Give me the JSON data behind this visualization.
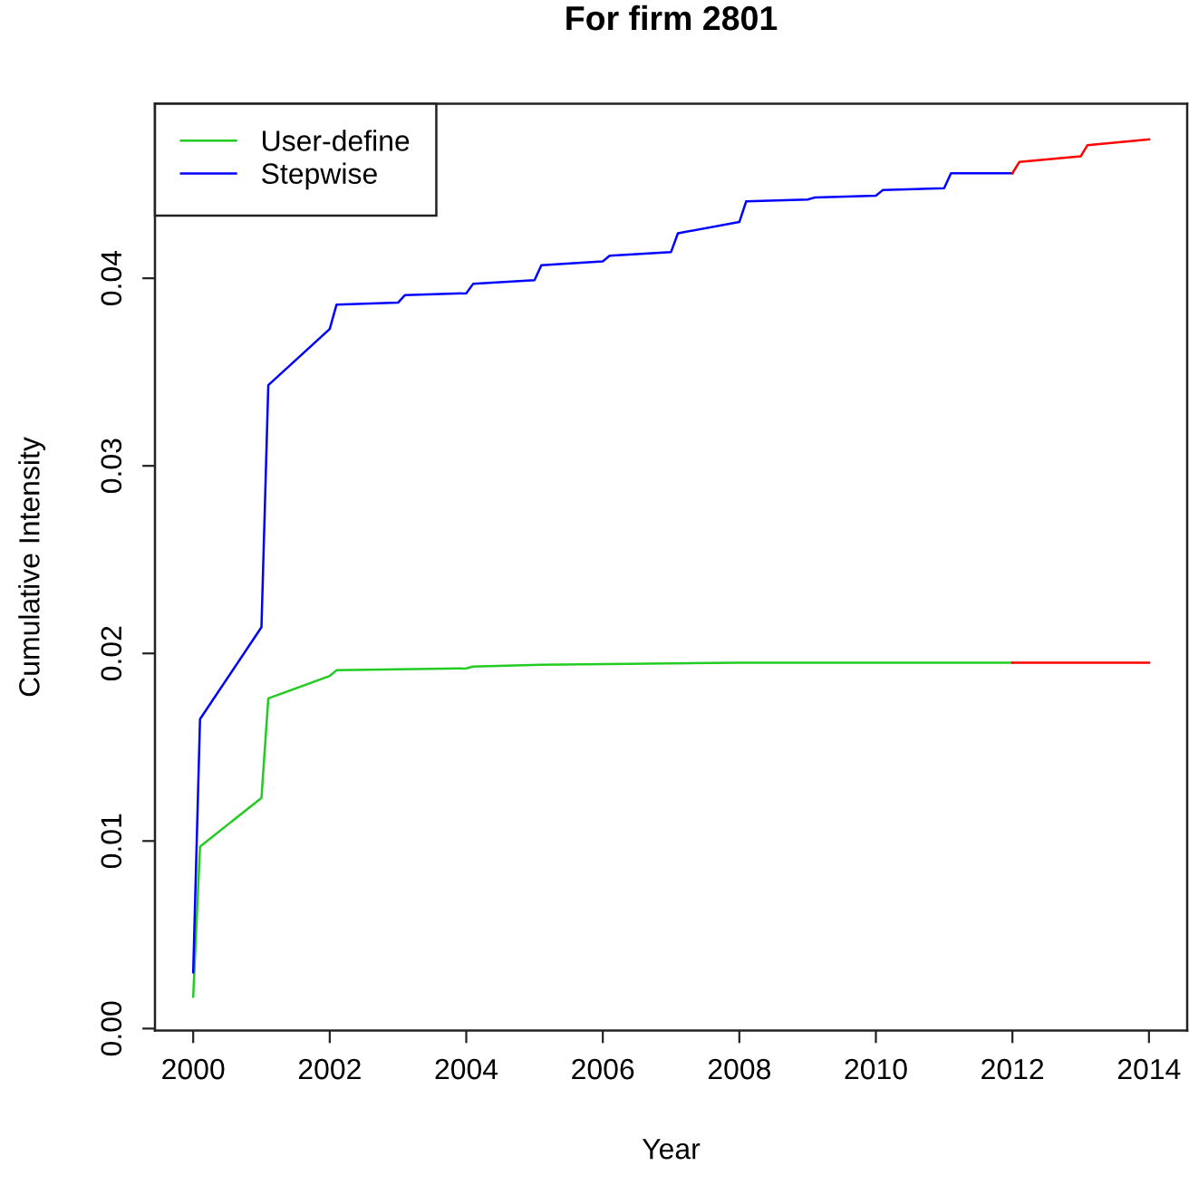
{
  "chart_data": {
    "type": "line",
    "title": "For firm 2801",
    "xlabel": "Year",
    "ylabel": "Cumulative Intensity",
    "series": [
      {
        "name": "User-define",
        "color": "#22cc22",
        "x": [
          2000.0,
          2000.1,
          2001.0,
          2001.1,
          2002.0,
          2002.1,
          2004.0,
          2004.1,
          2005.1,
          2008.0,
          2012.0
        ],
        "values": [
          0.0017,
          0.0097,
          0.0123,
          0.0176,
          0.0188,
          0.0191,
          0.0192,
          0.0193,
          0.0194,
          0.0195,
          0.0195
        ]
      },
      {
        "name": "Stepwise",
        "color": "#0000ff",
        "x": [
          2000.0,
          2000.1,
          2001.0,
          2001.1,
          2002.0,
          2002.1,
          2003.0,
          2003.1,
          2004.0,
          2004.1,
          2005.0,
          2005.1,
          2006.0,
          2006.1,
          2007.0,
          2007.1,
          2008.0,
          2008.1,
          2009.0,
          2009.1,
          2010.0,
          2010.1,
          2011.0,
          2011.1,
          2012.0
        ],
        "values": [
          0.003,
          0.0165,
          0.0214,
          0.0343,
          0.0373,
          0.0386,
          0.0387,
          0.0391,
          0.0392,
          0.0397,
          0.0399,
          0.0407,
          0.0409,
          0.0412,
          0.0414,
          0.0424,
          0.043,
          0.0441,
          0.0442,
          0.0443,
          0.0444,
          0.0447,
          0.0448,
          0.0456,
          0.0456
        ]
      },
      {
        "color": "#ff0000",
        "x": [
          2012.0,
          2014.0
        ],
        "values": [
          0.0195,
          0.0195
        ]
      },
      {
        "color": "#ff0000",
        "x": [
          2012.0,
          2012.1,
          2013.0,
          2013.1,
          2014.0
        ],
        "values": [
          0.0456,
          0.0462,
          0.0465,
          0.0471,
          0.0474
        ]
      }
    ],
    "xlim": [
      1999.44,
      2014.56
    ],
    "ylim": [
      -0.0001,
      0.0493
    ],
    "xticks": [
      2000,
      2002,
      2004,
      2006,
      2008,
      2010,
      2012,
      2014
    ],
    "yticks": [
      {
        "value": 0,
        "label": "0.00"
      },
      0.01,
      0.02,
      0.03,
      0.04
    ],
    "legend": "top left"
  }
}
